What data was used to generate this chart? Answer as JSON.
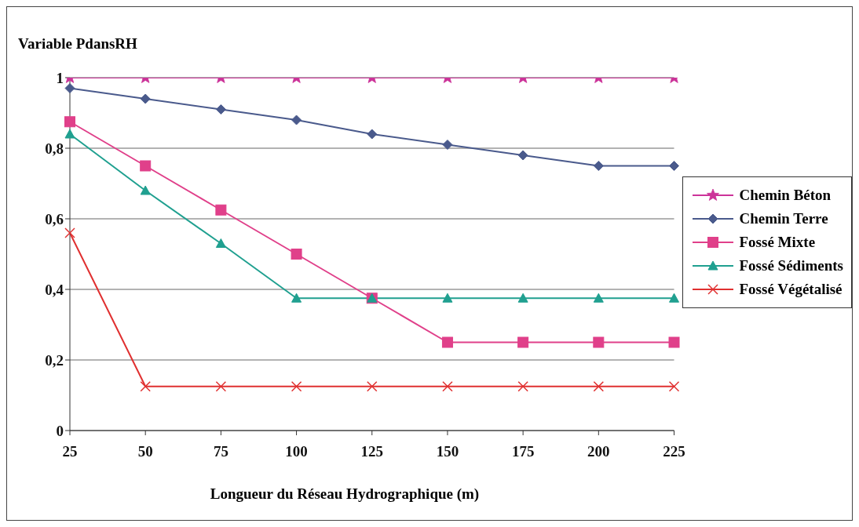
{
  "chart_data": {
    "type": "line",
    "ylabel": "Variable PdansRH",
    "xlabel": "Longueur du Réseau Hydrographique (m)",
    "categories": [
      "25",
      "50",
      "75",
      "100",
      "125",
      "150",
      "175",
      "200",
      "225"
    ],
    "ylim": [
      0,
      1
    ],
    "yticks": [
      {
        "value": 0,
        "label": "0"
      },
      {
        "value": 0.2,
        "label": "0,2"
      },
      {
        "value": 0.4,
        "label": "0,4"
      },
      {
        "value": 0.6,
        "label": "0,6"
      },
      {
        "value": 0.8,
        "label": "0,8"
      },
      {
        "value": 1,
        "label": "1"
      }
    ],
    "grid": "y",
    "legend": "right",
    "series": [
      {
        "name": "Chemin Béton",
        "color": "#cc3399",
        "marker": "star",
        "values": [
          1,
          1,
          1,
          1,
          1,
          1,
          1,
          1,
          1
        ]
      },
      {
        "name": "Chemin Terre",
        "color": "#4a5a8c",
        "marker": "diamond",
        "values": [
          0.97,
          0.94,
          0.91,
          0.88,
          0.84,
          0.81,
          0.78,
          0.75,
          0.75
        ]
      },
      {
        "name": "Fossé Mixte",
        "color": "#e0408a",
        "marker": "square",
        "values": [
          0.875,
          0.75,
          0.625,
          0.5,
          0.375,
          0.25,
          0.25,
          0.25,
          0.25
        ]
      },
      {
        "name": "Fossé Sédiments",
        "color": "#20a090",
        "marker": "triangle",
        "values": [
          0.84,
          0.68,
          0.53,
          0.375,
          0.375,
          0.375,
          0.375,
          0.375,
          0.375
        ]
      },
      {
        "name": "Fossé Végétalisé",
        "color": "#e03030",
        "marker": "cross",
        "values": [
          0.56,
          0.125,
          0.125,
          0.125,
          0.125,
          0.125,
          0.125,
          0.125,
          0.125
        ]
      }
    ]
  }
}
